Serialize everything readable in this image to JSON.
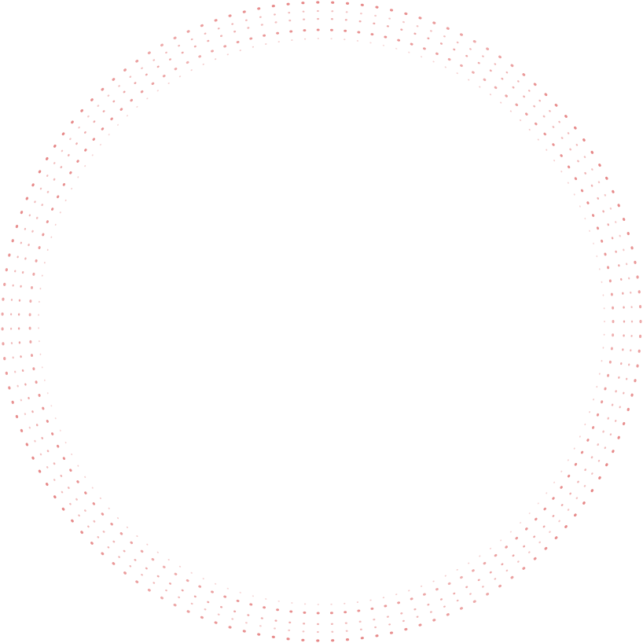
{
  "decoration": {
    "type": "dotted-ring",
    "ring_count": 5,
    "dots_per_ring": 135,
    "dot_color": "#e06a6a"
  }
}
